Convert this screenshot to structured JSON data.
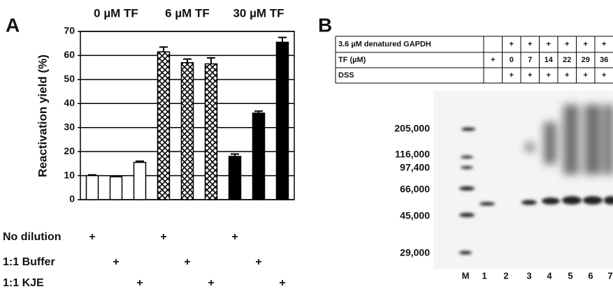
{
  "panel_a": {
    "letter": "A",
    "chart_data": {
      "type": "bar",
      "y_label": "Reactivation yield (%)",
      "values": [
        10,
        9.5,
        15.5,
        61.5,
        57,
        56.5,
        18,
        36,
        65.5
      ],
      "errors": [
        0.3,
        0.3,
        0.5,
        2,
        1.5,
        2.5,
        1,
        0.8,
        2
      ],
      "groups": [
        {
          "label": "0 µM TF",
          "fill": "white"
        },
        {
          "label": "6 µM TF",
          "fill": "crosshatch"
        },
        {
          "label": "30 µM TF",
          "fill": "black"
        }
      ],
      "ylim": [
        0,
        70
      ],
      "yticks": [
        0,
        10,
        20,
        30,
        40,
        50,
        60,
        70
      ],
      "grid": true,
      "conditions": [
        {
          "label": "No dilution",
          "position": 0
        },
        {
          "label": "1:1 Buffer",
          "position": 1
        },
        {
          "label": "1:1 KJE",
          "position": 2
        }
      ],
      "condition_mark": "+"
    }
  },
  "panel_b": {
    "letter": "B",
    "table": {
      "rows": [
        [
          "3.6 µM denatured GAPDH",
          null,
          "+",
          "+",
          "+",
          "+",
          "+",
          "+"
        ],
        [
          "TF (µM)",
          "+",
          "0",
          "7",
          "14",
          "22",
          "29",
          "36"
        ],
        [
          "DSS",
          null,
          "+",
          "+",
          "+",
          "+",
          "+",
          "+"
        ]
      ]
    },
    "markers": [
      "205,000",
      "116,000",
      "97,400",
      "66,000",
      "45,000",
      "29,000"
    ],
    "lanes": [
      "M",
      "1",
      "2",
      "3",
      "4",
      "5",
      "6",
      "7"
    ]
  }
}
